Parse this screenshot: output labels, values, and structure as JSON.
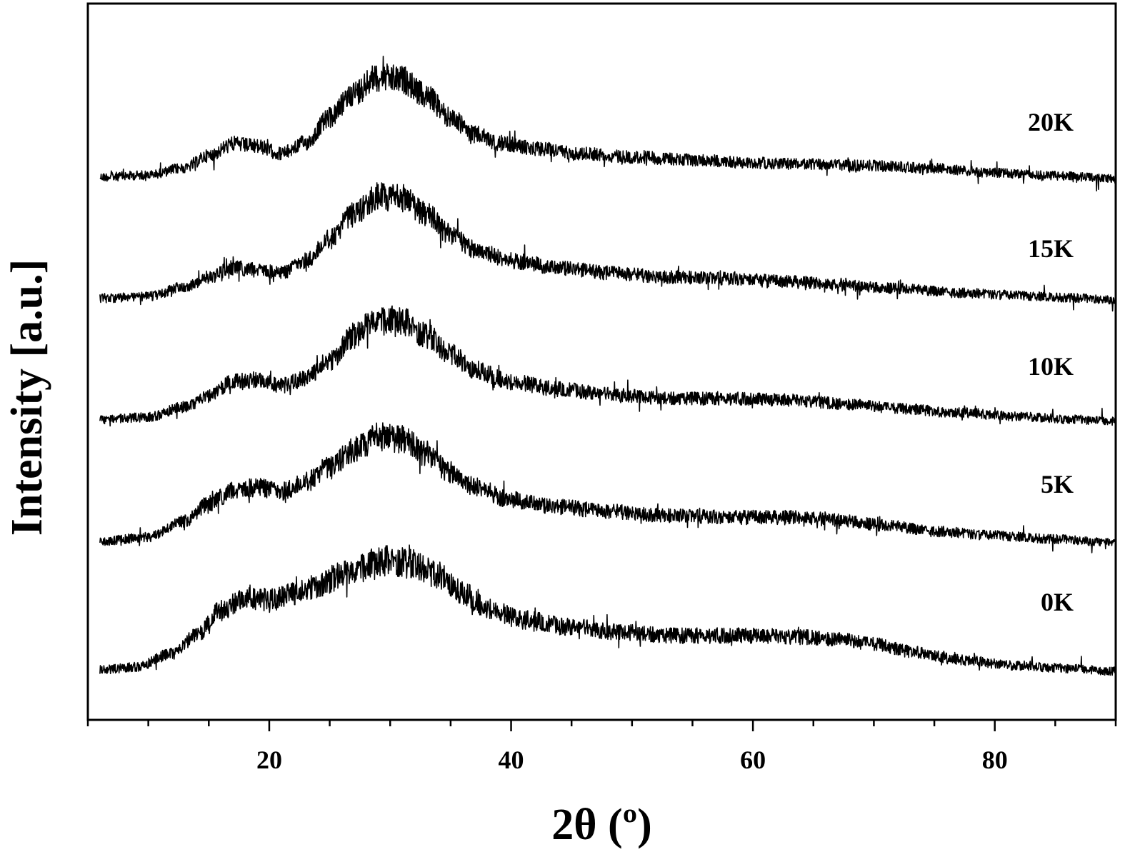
{
  "chart_data": {
    "type": "line",
    "title": "",
    "xlabel": "2θ (º)",
    "ylabel": "Intensity [a.u.]",
    "xlim": [
      5,
      90
    ],
    "x_ticks": [
      20,
      40,
      60,
      80
    ],
    "x_tick_labels": [
      "20",
      "40",
      "60",
      "80"
    ],
    "x_minor_step": 5,
    "y_scale": "arbitrary units, stacked traces",
    "grid": false,
    "legend": "none (series labelled inline at right)",
    "line_color": "#000000",
    "series": [
      {
        "name": "20K",
        "points": [
          [
            6,
            0.02
          ],
          [
            10,
            0.05
          ],
          [
            13,
            0.15
          ],
          [
            15,
            0.32
          ],
          [
            17,
            0.48
          ],
          [
            19,
            0.45
          ],
          [
            21,
            0.35
          ],
          [
            23,
            0.5
          ],
          [
            25,
            0.85
          ],
          [
            27,
            1.2
          ],
          [
            29,
            1.42
          ],
          [
            31,
            1.38
          ],
          [
            33,
            1.15
          ],
          [
            35,
            0.85
          ],
          [
            37,
            0.62
          ],
          [
            39,
            0.5
          ],
          [
            42,
            0.42
          ],
          [
            46,
            0.35
          ],
          [
            50,
            0.3
          ],
          [
            55,
            0.26
          ],
          [
            60,
            0.22
          ],
          [
            65,
            0.2
          ],
          [
            70,
            0.18
          ],
          [
            75,
            0.14
          ],
          [
            80,
            0.08
          ],
          [
            85,
            0.04
          ],
          [
            90,
            0.0
          ]
        ]
      },
      {
        "name": "15K",
        "points": [
          [
            6,
            0.02
          ],
          [
            10,
            0.05
          ],
          [
            13,
            0.18
          ],
          [
            15,
            0.32
          ],
          [
            17,
            0.45
          ],
          [
            19,
            0.42
          ],
          [
            21,
            0.38
          ],
          [
            23,
            0.55
          ],
          [
            25,
            0.85
          ],
          [
            27,
            1.2
          ],
          [
            29,
            1.45
          ],
          [
            31,
            1.42
          ],
          [
            33,
            1.2
          ],
          [
            35,
            0.92
          ],
          [
            37,
            0.7
          ],
          [
            40,
            0.55
          ],
          [
            44,
            0.45
          ],
          [
            48,
            0.38
          ],
          [
            53,
            0.32
          ],
          [
            58,
            0.3
          ],
          [
            63,
            0.26
          ],
          [
            68,
            0.2
          ],
          [
            72,
            0.16
          ],
          [
            77,
            0.1
          ],
          [
            82,
            0.06
          ],
          [
            86,
            0.03
          ],
          [
            90,
            0.0
          ]
        ]
      },
      {
        "name": "10K",
        "points": [
          [
            6,
            0.02
          ],
          [
            10,
            0.06
          ],
          [
            13,
            0.2
          ],
          [
            15,
            0.35
          ],
          [
            17,
            0.55
          ],
          [
            19,
            0.58
          ],
          [
            21,
            0.5
          ],
          [
            23,
            0.6
          ],
          [
            25,
            0.85
          ],
          [
            27,
            1.2
          ],
          [
            29,
            1.45
          ],
          [
            31,
            1.4
          ],
          [
            33,
            1.2
          ],
          [
            35,
            0.95
          ],
          [
            37,
            0.72
          ],
          [
            40,
            0.55
          ],
          [
            44,
            0.45
          ],
          [
            48,
            0.38
          ],
          [
            53,
            0.32
          ],
          [
            58,
            0.32
          ],
          [
            63,
            0.3
          ],
          [
            68,
            0.24
          ],
          [
            72,
            0.18
          ],
          [
            77,
            0.12
          ],
          [
            82,
            0.07
          ],
          [
            86,
            0.03
          ],
          [
            90,
            0.0
          ]
        ]
      },
      {
        "name": "5K",
        "points": [
          [
            6,
            0.02
          ],
          [
            10,
            0.08
          ],
          [
            13,
            0.3
          ],
          [
            15,
            0.55
          ],
          [
            17,
            0.72
          ],
          [
            19,
            0.78
          ],
          [
            21,
            0.72
          ],
          [
            23,
            0.85
          ],
          [
            25,
            1.05
          ],
          [
            27,
            1.3
          ],
          [
            29,
            1.48
          ],
          [
            31,
            1.45
          ],
          [
            33,
            1.25
          ],
          [
            35,
            0.98
          ],
          [
            37,
            0.78
          ],
          [
            40,
            0.6
          ],
          [
            44,
            0.5
          ],
          [
            48,
            0.44
          ],
          [
            53,
            0.38
          ],
          [
            58,
            0.36
          ],
          [
            63,
            0.36
          ],
          [
            67,
            0.32
          ],
          [
            71,
            0.24
          ],
          [
            75,
            0.16
          ],
          [
            80,
            0.1
          ],
          [
            85,
            0.05
          ],
          [
            90,
            0.0
          ]
        ]
      },
      {
        "name": "0K",
        "points": [
          [
            6,
            0.02
          ],
          [
            9,
            0.06
          ],
          [
            12,
            0.25
          ],
          [
            14,
            0.5
          ],
          [
            16,
            0.85
          ],
          [
            18,
            1.02
          ],
          [
            20,
            1.0
          ],
          [
            22,
            1.08
          ],
          [
            24,
            1.2
          ],
          [
            26,
            1.35
          ],
          [
            28,
            1.5
          ],
          [
            30,
            1.55
          ],
          [
            32,
            1.5
          ],
          [
            34,
            1.35
          ],
          [
            36,
            1.1
          ],
          [
            38,
            0.88
          ],
          [
            41,
            0.72
          ],
          [
            45,
            0.62
          ],
          [
            49,
            0.55
          ],
          [
            53,
            0.5
          ],
          [
            57,
            0.5
          ],
          [
            61,
            0.5
          ],
          [
            64,
            0.48
          ],
          [
            67,
            0.45
          ],
          [
            70,
            0.38
          ],
          [
            73,
            0.28
          ],
          [
            77,
            0.16
          ],
          [
            82,
            0.08
          ],
          [
            86,
            0.04
          ],
          [
            90,
            0.0
          ]
        ]
      }
    ]
  }
}
